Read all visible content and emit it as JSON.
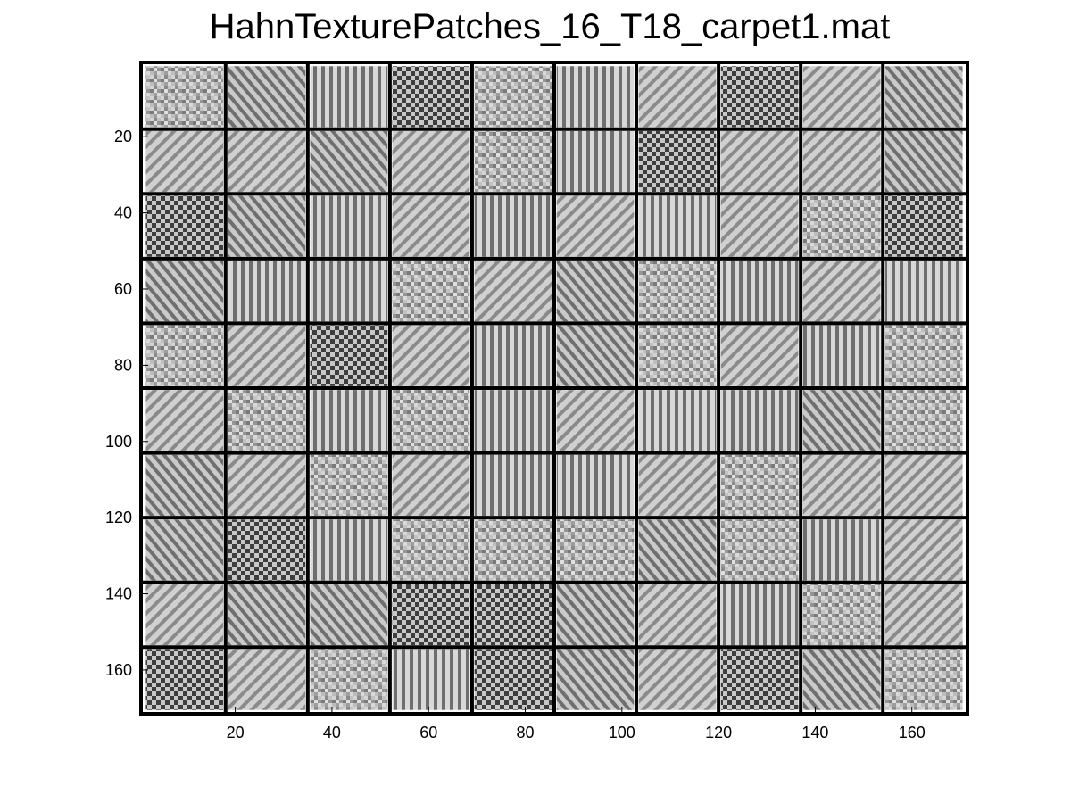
{
  "chart_data": {
    "type": "heatmap",
    "title": "HahnTexturePatches_16_T18_carpet1.mat",
    "xlabel": "",
    "ylabel": "",
    "xlim": [
      0.5,
      171.5
    ],
    "ylim": [
      0.5,
      171.5
    ],
    "y_reversed": true,
    "grid": false,
    "colormap": "gray",
    "patch_size": 16,
    "grid_rows": 10,
    "grid_cols": 10,
    "x_ticks": [
      20,
      40,
      60,
      80,
      100,
      120,
      140,
      160
    ],
    "y_ticks": [
      20,
      40,
      60,
      80,
      100,
      120,
      140,
      160
    ],
    "x_tick_labels": [
      "20",
      "40",
      "60",
      "80",
      "100",
      "120",
      "140",
      "160"
    ],
    "y_tick_labels": [
      "20",
      "40",
      "60",
      "80",
      "100",
      "120",
      "140",
      "160"
    ],
    "patches": [
      [
        "noise",
        "diag-left",
        "vertical",
        "checker",
        "noise",
        "vertical",
        "diag-right",
        "checker",
        "diag-right",
        "diag-left"
      ],
      [
        "diag-right",
        "diag-right",
        "diag-left",
        "diag-right",
        "noise",
        "vertical",
        "checker",
        "diag-right",
        "diag-right",
        "diag-left"
      ],
      [
        "checker",
        "diag-left",
        "vertical",
        "diag-right",
        "vertical",
        "diag-right",
        "vertical",
        "diag-right",
        "noise",
        "checker"
      ],
      [
        "diag-left",
        "vertical",
        "vertical",
        "noise",
        "diag-right",
        "diag-left",
        "noise",
        "vertical",
        "diag-right",
        "vertical"
      ],
      [
        "noise",
        "diag-right",
        "checker",
        "diag-right",
        "vertical",
        "diag-left",
        "noise",
        "diag-right",
        "vertical",
        "noise"
      ],
      [
        "diag-right",
        "noise",
        "vertical",
        "noise",
        "vertical",
        "diag-right",
        "vertical",
        "vertical",
        "diag-left",
        "noise"
      ],
      [
        "diag-left",
        "diag-right",
        "noise",
        "diag-right",
        "vertical",
        "vertical",
        "diag-right",
        "noise",
        "diag-right",
        "diag-right"
      ],
      [
        "diag-left",
        "checker",
        "vertical",
        "noise",
        "noise",
        "noise",
        "diag-left",
        "noise",
        "vertical",
        "diag-right"
      ],
      [
        "diag-right",
        "diag-left",
        "diag-left",
        "checker",
        "checker",
        "diag-left",
        "diag-right",
        "vertical",
        "noise",
        "diag-right"
      ],
      [
        "checker",
        "diag-right",
        "noise",
        "vertical",
        "checker",
        "diag-left",
        "diag-right",
        "checker",
        "diag-left",
        "noise"
      ]
    ]
  }
}
